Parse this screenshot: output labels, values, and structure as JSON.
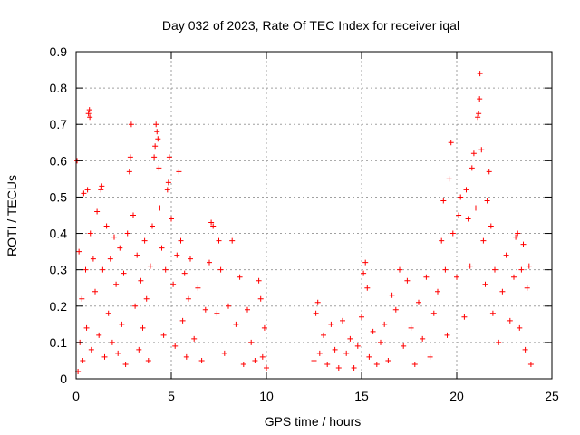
{
  "chart_data": {
    "type": "scatter",
    "title": "Day 032 of 2023, Rate Of TEC Index for receiver iqal",
    "xlabel": "GPS time / hours",
    "ylabel": "ROTI / TECUs",
    "xlim": [
      0,
      25
    ],
    "ylim": [
      0,
      0.9
    ],
    "xticks": [
      0,
      5,
      10,
      15,
      20,
      25
    ],
    "xtick_labels": [
      "0",
      "5",
      "10",
      "15",
      "20",
      "25"
    ],
    "yticks": [
      0,
      0.1,
      0.2,
      0.3,
      0.4,
      0.5,
      0.6,
      0.7,
      0.8,
      0.9
    ],
    "ytick_labels": [
      "0",
      "0.1",
      "0.2",
      "0.3",
      "0.4",
      "0.5",
      "0.6",
      "0.7",
      "0.8",
      "0.9"
    ],
    "grid": true,
    "marker": "+",
    "color": "#ff0000",
    "data_gap_hours": [
      10.1,
      12.4
    ],
    "series": [
      {
        "name": "ROTI",
        "points": [
          [
            0.0,
            0.47
          ],
          [
            0.05,
            0.6
          ],
          [
            0.1,
            0.02
          ],
          [
            0.15,
            0.35
          ],
          [
            0.2,
            0.1
          ],
          [
            0.3,
            0.22
          ],
          [
            0.35,
            0.05
          ],
          [
            0.4,
            0.51
          ],
          [
            0.5,
            0.3
          ],
          [
            0.55,
            0.14
          ],
          [
            0.6,
            0.52
          ],
          [
            0.65,
            0.73
          ],
          [
            0.7,
            0.74
          ],
          [
            0.72,
            0.72
          ],
          [
            0.75,
            0.4
          ],
          [
            0.8,
            0.08
          ],
          [
            0.9,
            0.33
          ],
          [
            1.0,
            0.24
          ],
          [
            1.1,
            0.46
          ],
          [
            1.2,
            0.12
          ],
          [
            1.3,
            0.52
          ],
          [
            1.35,
            0.53
          ],
          [
            1.4,
            0.3
          ],
          [
            1.5,
            0.06
          ],
          [
            1.6,
            0.42
          ],
          [
            1.7,
            0.18
          ],
          [
            1.8,
            0.33
          ],
          [
            1.9,
            0.1
          ],
          [
            2.0,
            0.39
          ],
          [
            2.1,
            0.26
          ],
          [
            2.2,
            0.07
          ],
          [
            2.3,
            0.36
          ],
          [
            2.4,
            0.15
          ],
          [
            2.5,
            0.29
          ],
          [
            2.6,
            0.04
          ],
          [
            2.7,
            0.4
          ],
          [
            2.8,
            0.57
          ],
          [
            2.85,
            0.61
          ],
          [
            2.9,
            0.7
          ],
          [
            3.0,
            0.45
          ],
          [
            3.1,
            0.2
          ],
          [
            3.2,
            0.34
          ],
          [
            3.3,
            0.08
          ],
          [
            3.4,
            0.27
          ],
          [
            3.5,
            0.14
          ],
          [
            3.6,
            0.38
          ],
          [
            3.7,
            0.22
          ],
          [
            3.8,
            0.05
          ],
          [
            3.9,
            0.31
          ],
          [
            4.0,
            0.42
          ],
          [
            4.1,
            0.61
          ],
          [
            4.15,
            0.64
          ],
          [
            4.2,
            0.7
          ],
          [
            4.25,
            0.68
          ],
          [
            4.3,
            0.66
          ],
          [
            4.35,
            0.58
          ],
          [
            4.4,
            0.47
          ],
          [
            4.5,
            0.36
          ],
          [
            4.6,
            0.12
          ],
          [
            4.7,
            0.3
          ],
          [
            4.8,
            0.52
          ],
          [
            4.85,
            0.54
          ],
          [
            4.9,
            0.61
          ],
          [
            5.0,
            0.44
          ],
          [
            5.1,
            0.26
          ],
          [
            5.2,
            0.09
          ],
          [
            5.3,
            0.34
          ],
          [
            5.4,
            0.57
          ],
          [
            5.5,
            0.38
          ],
          [
            5.6,
            0.16
          ],
          [
            5.7,
            0.29
          ],
          [
            5.8,
            0.06
          ],
          [
            5.9,
            0.22
          ],
          [
            6.0,
            0.33
          ],
          [
            6.2,
            0.11
          ],
          [
            6.4,
            0.25
          ],
          [
            6.6,
            0.05
          ],
          [
            6.8,
            0.19
          ],
          [
            7.0,
            0.32
          ],
          [
            7.1,
            0.43
          ],
          [
            7.2,
            0.42
          ],
          [
            7.4,
            0.18
          ],
          [
            7.5,
            0.38
          ],
          [
            7.6,
            0.3
          ],
          [
            7.8,
            0.07
          ],
          [
            8.0,
            0.2
          ],
          [
            8.2,
            0.38
          ],
          [
            8.4,
            0.15
          ],
          [
            8.6,
            0.28
          ],
          [
            8.8,
            0.04
          ],
          [
            9.0,
            0.19
          ],
          [
            9.2,
            0.1
          ],
          [
            9.4,
            0.05
          ],
          [
            9.6,
            0.27
          ],
          [
            9.7,
            0.22
          ],
          [
            9.8,
            0.06
          ],
          [
            9.9,
            0.14
          ],
          [
            10.0,
            0.03
          ],
          [
            12.5,
            0.05
          ],
          [
            12.6,
            0.18
          ],
          [
            12.7,
            0.21
          ],
          [
            12.8,
            0.07
          ],
          [
            13.0,
            0.12
          ],
          [
            13.2,
            0.04
          ],
          [
            13.4,
            0.15
          ],
          [
            13.6,
            0.08
          ],
          [
            13.8,
            0.03
          ],
          [
            14.0,
            0.16
          ],
          [
            14.2,
            0.07
          ],
          [
            14.4,
            0.11
          ],
          [
            14.6,
            0.03
          ],
          [
            14.8,
            0.09
          ],
          [
            15.0,
            0.17
          ],
          [
            15.1,
            0.29
          ],
          [
            15.2,
            0.32
          ],
          [
            15.3,
            0.25
          ],
          [
            15.4,
            0.06
          ],
          [
            15.6,
            0.13
          ],
          [
            15.8,
            0.04
          ],
          [
            16.0,
            0.1
          ],
          [
            16.2,
            0.15
          ],
          [
            16.4,
            0.05
          ],
          [
            16.6,
            0.23
          ],
          [
            16.8,
            0.19
          ],
          [
            17.0,
            0.3
          ],
          [
            17.2,
            0.09
          ],
          [
            17.4,
            0.27
          ],
          [
            17.6,
            0.14
          ],
          [
            17.8,
            0.04
          ],
          [
            18.0,
            0.21
          ],
          [
            18.2,
            0.11
          ],
          [
            18.4,
            0.28
          ],
          [
            18.6,
            0.06
          ],
          [
            18.8,
            0.18
          ],
          [
            19.0,
            0.24
          ],
          [
            19.2,
            0.38
          ],
          [
            19.3,
            0.49
          ],
          [
            19.4,
            0.3
          ],
          [
            19.5,
            0.12
          ],
          [
            19.6,
            0.55
          ],
          [
            19.7,
            0.65
          ],
          [
            19.8,
            0.4
          ],
          [
            20.0,
            0.28
          ],
          [
            20.1,
            0.45
          ],
          [
            20.2,
            0.5
          ],
          [
            20.4,
            0.17
          ],
          [
            20.5,
            0.52
          ],
          [
            20.6,
            0.44
          ],
          [
            20.7,
            0.31
          ],
          [
            20.8,
            0.58
          ],
          [
            20.9,
            0.62
          ],
          [
            21.0,
            0.47
          ],
          [
            21.1,
            0.72
          ],
          [
            21.15,
            0.73
          ],
          [
            21.2,
            0.77
          ],
          [
            21.22,
            0.84
          ],
          [
            21.3,
            0.63
          ],
          [
            21.4,
            0.38
          ],
          [
            21.5,
            0.26
          ],
          [
            21.6,
            0.49
          ],
          [
            21.7,
            0.57
          ],
          [
            21.8,
            0.42
          ],
          [
            21.9,
            0.18
          ],
          [
            22.0,
            0.3
          ],
          [
            22.2,
            0.1
          ],
          [
            22.4,
            0.24
          ],
          [
            22.6,
            0.34
          ],
          [
            22.8,
            0.16
          ],
          [
            23.0,
            0.28
          ],
          [
            23.1,
            0.39
          ],
          [
            23.2,
            0.4
          ],
          [
            23.3,
            0.14
          ],
          [
            23.4,
            0.3
          ],
          [
            23.5,
            0.37
          ],
          [
            23.6,
            0.08
          ],
          [
            23.7,
            0.25
          ],
          [
            23.8,
            0.31
          ],
          [
            23.9,
            0.04
          ]
        ]
      }
    ]
  }
}
